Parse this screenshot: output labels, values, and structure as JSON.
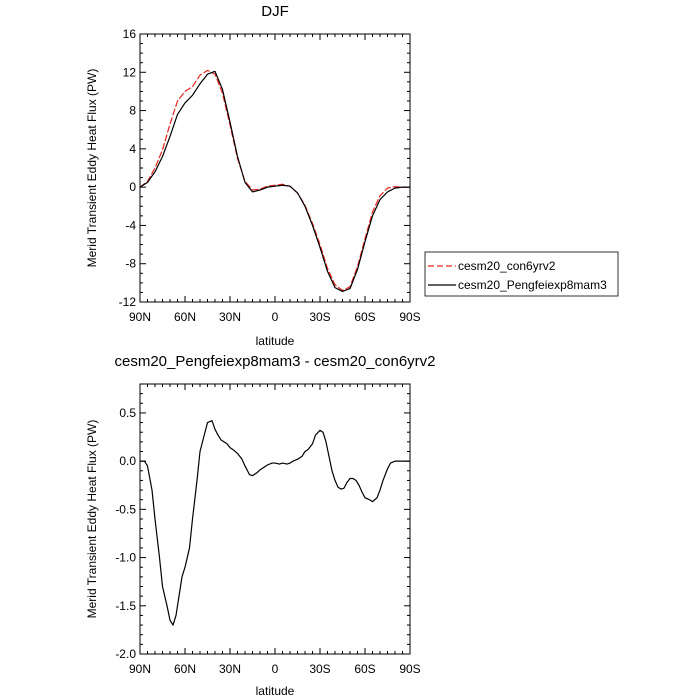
{
  "chart_data": [
    {
      "type": "line",
      "title": "DJF",
      "xlabel": "latitude",
      "ylabel": "Merid Transient Eddy Heat Flux (PW)",
      "x_tick_labels": [
        "90N",
        "60N",
        "30N",
        "0",
        "30S",
        "60S",
        "90S"
      ],
      "x_tick_values": [
        90,
        60,
        30,
        0,
        -30,
        -60,
        -90
      ],
      "xlim": [
        90,
        -90
      ],
      "ylim": [
        -12,
        16
      ],
      "y_ticks": [
        -12,
        -8,
        -4,
        0,
        4,
        8,
        12,
        16
      ],
      "y_tick_labels": [
        "-12",
        "-8",
        "-4",
        "0",
        "4",
        "8",
        "12",
        "16"
      ],
      "legend_position": "right",
      "series": [
        {
          "name": "cesm20_con6yrv2",
          "color": "#e8251f",
          "dash": "dashed",
          "x": [
            90,
            85,
            80,
            75,
            70,
            65,
            60,
            55,
            50,
            45,
            40,
            35,
            30,
            25,
            20,
            15,
            10,
            5,
            0,
            -5,
            -10,
            -15,
            -20,
            -25,
            -30,
            -35,
            -40,
            -45,
            -50,
            -55,
            -60,
            -65,
            -70,
            -75,
            -80,
            -85,
            -90
          ],
          "y": [
            0,
            0.6,
            2.0,
            3.9,
            6.6,
            9.0,
            10.0,
            10.5,
            11.7,
            12.2,
            11.8,
            9.8,
            6.5,
            3.0,
            0.6,
            -0.3,
            -0.2,
            0.1,
            0.2,
            0.3,
            0.1,
            -0.6,
            -1.9,
            -3.8,
            -6.0,
            -8.5,
            -10.2,
            -10.8,
            -10.4,
            -8.3,
            -5.4,
            -2.6,
            -0.9,
            -0.1,
            0.05,
            0.0,
            0.0
          ]
        },
        {
          "name": "cesm20_Pengfeiexp8mam3",
          "color": "#000000",
          "dash": "solid",
          "x": [
            90,
            85,
            80,
            75,
            70,
            65,
            60,
            55,
            50,
            45,
            40,
            35,
            30,
            25,
            20,
            15,
            10,
            5,
            0,
            -5,
            -10,
            -15,
            -20,
            -25,
            -30,
            -35,
            -40,
            -45,
            -50,
            -55,
            -60,
            -65,
            -70,
            -75,
            -80,
            -85,
            -90
          ],
          "y": [
            0,
            0.5,
            1.6,
            3.2,
            5.3,
            7.6,
            8.8,
            9.6,
            10.8,
            11.8,
            12.1,
            10.2,
            6.8,
            3.2,
            0.5,
            -0.5,
            -0.3,
            0.0,
            0.1,
            0.2,
            0.1,
            -0.6,
            -2.0,
            -4.0,
            -6.3,
            -8.8,
            -10.5,
            -10.9,
            -10.6,
            -8.6,
            -5.7,
            -3.0,
            -1.3,
            -0.5,
            -0.1,
            0.0,
            0.0
          ]
        }
      ]
    },
    {
      "type": "line",
      "title": "cesm20_Pengfeiexp8mam3 - cesm20_con6yrv2",
      "xlabel": "latitude",
      "ylabel": "Merid Transient Eddy Heat Flux (PW)",
      "x_tick_labels": [
        "90N",
        "60N",
        "30N",
        "0",
        "30S",
        "60S",
        "90S"
      ],
      "x_tick_values": [
        90,
        60,
        30,
        0,
        -30,
        -60,
        -90
      ],
      "xlim": [
        90,
        -90
      ],
      "ylim": [
        -2.0,
        0.8
      ],
      "y_ticks": [
        -2.0,
        -1.5,
        -1.0,
        -0.5,
        0.0,
        0.5
      ],
      "y_tick_labels": [
        "-2.0",
        "-1.5",
        "-1.0",
        "-0.5",
        "0.0",
        "0.5"
      ],
      "series": [
        {
          "color": "#000000",
          "dash": "solid",
          "x": [
            90,
            87,
            85,
            82,
            80,
            77,
            75,
            72,
            70,
            68,
            66,
            64,
            62,
            60,
            57,
            55,
            52,
            50,
            47,
            45,
            42,
            40,
            38,
            36,
            34,
            32,
            30,
            28,
            25,
            22,
            20,
            17,
            15,
            12,
            10,
            7,
            5,
            2,
            0,
            -3,
            -5,
            -8,
            -10,
            -12,
            -15,
            -18,
            -20,
            -22,
            -25,
            -27,
            -30,
            -32,
            -34,
            -36,
            -38,
            -40,
            -42,
            -44,
            -46,
            -48,
            -50,
            -52,
            -54,
            -56,
            -58,
            -60,
            -63,
            -65,
            -68,
            -70,
            -72,
            -75,
            -77,
            -80,
            -82,
            -84,
            -86,
            -88,
            -90
          ],
          "y": [
            0.0,
            0.0,
            -0.05,
            -0.3,
            -0.6,
            -1.0,
            -1.3,
            -1.5,
            -1.65,
            -1.7,
            -1.6,
            -1.4,
            -1.2,
            -1.1,
            -0.9,
            -0.6,
            -0.2,
            0.1,
            0.28,
            0.4,
            0.42,
            0.33,
            0.27,
            0.22,
            0.2,
            0.18,
            0.14,
            0.12,
            0.08,
            0.02,
            -0.05,
            -0.14,
            -0.15,
            -0.12,
            -0.09,
            -0.06,
            -0.04,
            -0.02,
            -0.02,
            -0.03,
            -0.02,
            -0.03,
            -0.02,
            0.0,
            0.02,
            0.05,
            0.1,
            0.12,
            0.18,
            0.27,
            0.32,
            0.3,
            0.2,
            0.05,
            -0.1,
            -0.2,
            -0.27,
            -0.29,
            -0.28,
            -0.22,
            -0.18,
            -0.18,
            -0.2,
            -0.25,
            -0.32,
            -0.38,
            -0.4,
            -0.42,
            -0.38,
            -0.3,
            -0.2,
            -0.08,
            -0.02,
            0.0,
            0.0,
            0.0,
            0.0,
            0.0,
            0.0
          ]
        }
      ]
    }
  ]
}
